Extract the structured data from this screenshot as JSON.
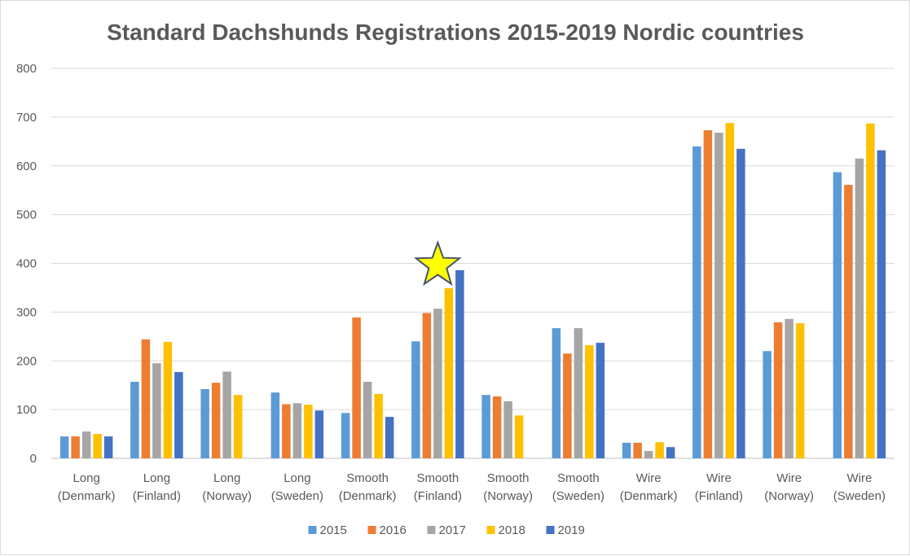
{
  "chart_data": {
    "type": "bar",
    "title": "Standard Dachshunds Registrations 2015-2019 Nordic countries",
    "xlabel": "",
    "ylabel": "",
    "ylim": [
      0,
      800
    ],
    "yticks": [
      0,
      100,
      200,
      300,
      400,
      500,
      600,
      700,
      800
    ],
    "grid": true,
    "legend_position": "bottom",
    "categories": [
      [
        "Long",
        "(Denmark)"
      ],
      [
        "Long",
        "(Finland)"
      ],
      [
        "Long",
        "(Norway)"
      ],
      [
        "Long",
        "(Sweden)"
      ],
      [
        "Smooth",
        "(Denmark)"
      ],
      [
        "Smooth",
        "(Finland)"
      ],
      [
        "Smooth",
        "(Norway)"
      ],
      [
        "Smooth",
        "(Sweden)"
      ],
      [
        "Wire",
        "(Denmark)"
      ],
      [
        "Wire",
        "(Finland)"
      ],
      [
        "Wire",
        "(Norway)"
      ],
      [
        "Wire",
        "(Sweden)"
      ]
    ],
    "series": [
      {
        "name": "2015",
        "color": "#5b9bd5",
        "values": [
          45,
          157,
          142,
          135,
          93,
          240,
          130,
          267,
          32,
          640,
          220,
          587
        ]
      },
      {
        "name": "2016",
        "color": "#ed7d31",
        "values": [
          45,
          244,
          155,
          111,
          289,
          298,
          127,
          215,
          32,
          673,
          279,
          561
        ]
      },
      {
        "name": "2017",
        "color": "#a5a5a5",
        "values": [
          55,
          195,
          178,
          113,
          157,
          307,
          117,
          267,
          15,
          668,
          286,
          615
        ]
      },
      {
        "name": "2018",
        "color": "#ffc000",
        "values": [
          50,
          239,
          130,
          110,
          132,
          349,
          88,
          232,
          33,
          688,
          277,
          687
        ]
      },
      {
        "name": "2019",
        "color": "#4472c4",
        "values": [
          45,
          177,
          null,
          98,
          85,
          386,
          null,
          237,
          23,
          635,
          null,
          632
        ]
      }
    ],
    "annotations": [
      {
        "type": "star-icon",
        "category_index": 5,
        "color": "#ffff00",
        "stroke": "#44546a"
      }
    ]
  }
}
